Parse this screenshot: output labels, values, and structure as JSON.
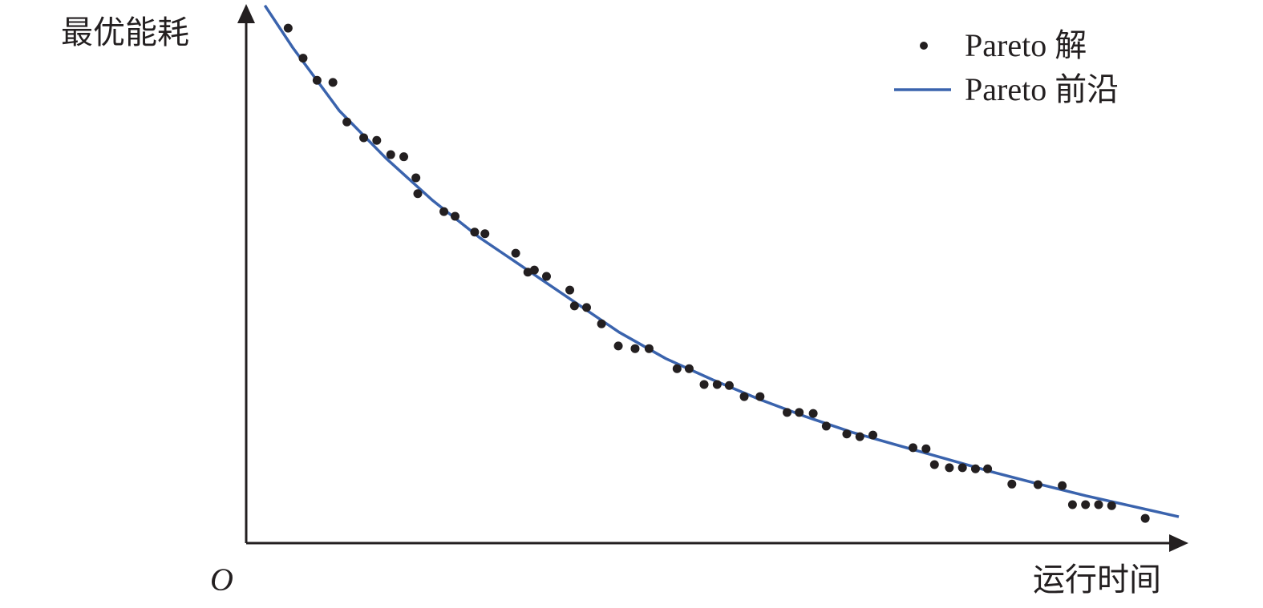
{
  "chart_data": {
    "type": "scatter",
    "title": "",
    "xlabel": "运行时间",
    "ylabel": "最优能耗",
    "origin_label": "O",
    "xlim": [
      0,
      100
    ],
    "ylim": [
      0,
      100
    ],
    "grid": false,
    "ticks": false,
    "legend_position": "top-right",
    "colors": {
      "points": "#231f20",
      "front": "#3a63ad",
      "axes": "#231f20"
    },
    "series": [
      {
        "name": "Pareto 解",
        "kind": "scatter",
        "points": [
          [
            4.5,
            97.7
          ],
          [
            6.1,
            92.0
          ],
          [
            7.6,
            87.8
          ],
          [
            9.3,
            87.4
          ],
          [
            10.8,
            79.9
          ],
          [
            12.6,
            76.9
          ],
          [
            14.0,
            76.4
          ],
          [
            15.5,
            73.7
          ],
          [
            16.9,
            73.3
          ],
          [
            18.2,
            69.3
          ],
          [
            18.4,
            66.3
          ],
          [
            21.2,
            62.9
          ],
          [
            22.4,
            62.0
          ],
          [
            24.5,
            59.0
          ],
          [
            25.6,
            58.7
          ],
          [
            28.9,
            55.0
          ],
          [
            30.2,
            51.4
          ],
          [
            30.9,
            51.8
          ],
          [
            32.2,
            50.6
          ],
          [
            34.7,
            48.0
          ],
          [
            35.2,
            45.0
          ],
          [
            36.5,
            44.7
          ],
          [
            38.1,
            41.6
          ],
          [
            39.9,
            37.4
          ],
          [
            41.7,
            36.9
          ],
          [
            43.2,
            36.9
          ],
          [
            46.2,
            33.1
          ],
          [
            47.5,
            33.1
          ],
          [
            49.1,
            30.1
          ],
          [
            50.5,
            30.1
          ],
          [
            51.8,
            29.9
          ],
          [
            53.4,
            27.8
          ],
          [
            55.1,
            27.8
          ],
          [
            58.0,
            24.8
          ],
          [
            59.3,
            24.8
          ],
          [
            60.8,
            24.6
          ],
          [
            62.2,
            22.2
          ],
          [
            64.4,
            20.7
          ],
          [
            65.8,
            20.2
          ],
          [
            67.2,
            20.5
          ],
          [
            71.5,
            18.1
          ],
          [
            72.9,
            17.9
          ],
          [
            73.8,
            14.9
          ],
          [
            75.4,
            14.3
          ],
          [
            76.8,
            14.3
          ],
          [
            78.2,
            14.1
          ],
          [
            79.5,
            14.1
          ],
          [
            82.1,
            11.2
          ],
          [
            84.9,
            11.1
          ],
          [
            87.5,
            10.9
          ],
          [
            88.6,
            7.3
          ],
          [
            90.0,
            7.3
          ],
          [
            91.4,
            7.3
          ],
          [
            92.8,
            7.1
          ],
          [
            96.4,
            4.7
          ]
        ]
      },
      {
        "name": "Pareto 前沿",
        "kind": "line",
        "points": [
          [
            2,
            102
          ],
          [
            5,
            94
          ],
          [
            10,
            82
          ],
          [
            15,
            73
          ],
          [
            20,
            65
          ],
          [
            25,
            58
          ],
          [
            30,
            52
          ],
          [
            35,
            46
          ],
          [
            40,
            40
          ],
          [
            45,
            35
          ],
          [
            50,
            31
          ],
          [
            55,
            27.3
          ],
          [
            60,
            24
          ],
          [
            65,
            21
          ],
          [
            70,
            18.5
          ],
          [
            75,
            16
          ],
          [
            80,
            13.5
          ],
          [
            85,
            11.2
          ],
          [
            90,
            9
          ],
          [
            95,
            7
          ],
          [
            100,
            5
          ]
        ]
      }
    ]
  }
}
